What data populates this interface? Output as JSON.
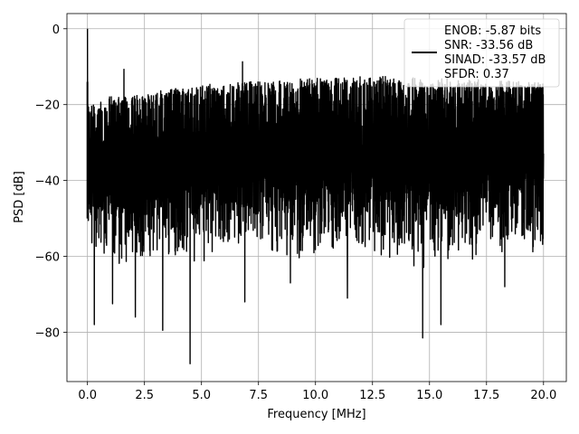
{
  "chart_data": {
    "type": "line",
    "title": "",
    "xlabel": "Frequency [MHz]",
    "ylabel": "PSD [dB]",
    "xlim": [
      -0.9,
      21.0
    ],
    "ylim": [
      -93,
      4
    ],
    "grid": true,
    "legend_position": "top-right",
    "x_ticks": [
      0.0,
      2.5,
      5.0,
      7.5,
      10.0,
      12.5,
      15.0,
      17.5,
      20.0
    ],
    "x_tick_labels": [
      "0.0",
      "2.5",
      "5.0",
      "7.5",
      "10.0",
      "12.5",
      "15.0",
      "17.5",
      "20.0"
    ],
    "y_ticks": [
      0,
      -20,
      -40,
      -60,
      -80
    ],
    "y_tick_labels": [
      "0",
      "−20",
      "−40",
      "−60",
      "−80"
    ],
    "series": [
      {
        "color": "#000000",
        "x_range": [
          0,
          20
        ],
        "envelope": {
          "upper_x": [
            0.0,
            0.5,
            1.0,
            2.5,
            5.0,
            7.5,
            10.0,
            12.5,
            15.0,
            17.5,
            20.0
          ],
          "upper_y": [
            -21,
            -20,
            -19,
            -18,
            -16,
            -15,
            -14,
            -13.5,
            -14,
            -14.5,
            -15
          ],
          "lower_x": [
            0.0,
            0.5,
            1.0,
            2.5,
            5.0,
            7.5,
            10.0,
            12.5,
            15.0,
            17.5,
            20.0
          ],
          "lower_y": [
            -55,
            -58,
            -60,
            -60,
            -58,
            -58,
            -60,
            -58,
            -60,
            -58,
            -58
          ]
        },
        "peaks": [
          {
            "x": 0.0,
            "y": 0
          },
          {
            "x": 1.6,
            "y": -10.7
          },
          {
            "x": 6.8,
            "y": -8.7
          }
        ],
        "dips": [
          {
            "x": 0.3,
            "y": -78
          },
          {
            "x": 1.1,
            "y": -72.5
          },
          {
            "x": 2.1,
            "y": -76
          },
          {
            "x": 3.3,
            "y": -79.5
          },
          {
            "x": 4.5,
            "y": -88.3
          },
          {
            "x": 6.9,
            "y": -72
          },
          {
            "x": 8.9,
            "y": -67
          },
          {
            "x": 11.4,
            "y": -71
          },
          {
            "x": 14.7,
            "y": -81.5
          },
          {
            "x": 15.5,
            "y": -78
          },
          {
            "x": 18.3,
            "y": -68
          }
        ]
      }
    ],
    "legend": {
      "lines": [
        "ENOB: -5.87 bits",
        "SNR: -33.56 dB",
        "SINAD: -33.57 dB",
        "SFDR: 0.37"
      ]
    }
  }
}
